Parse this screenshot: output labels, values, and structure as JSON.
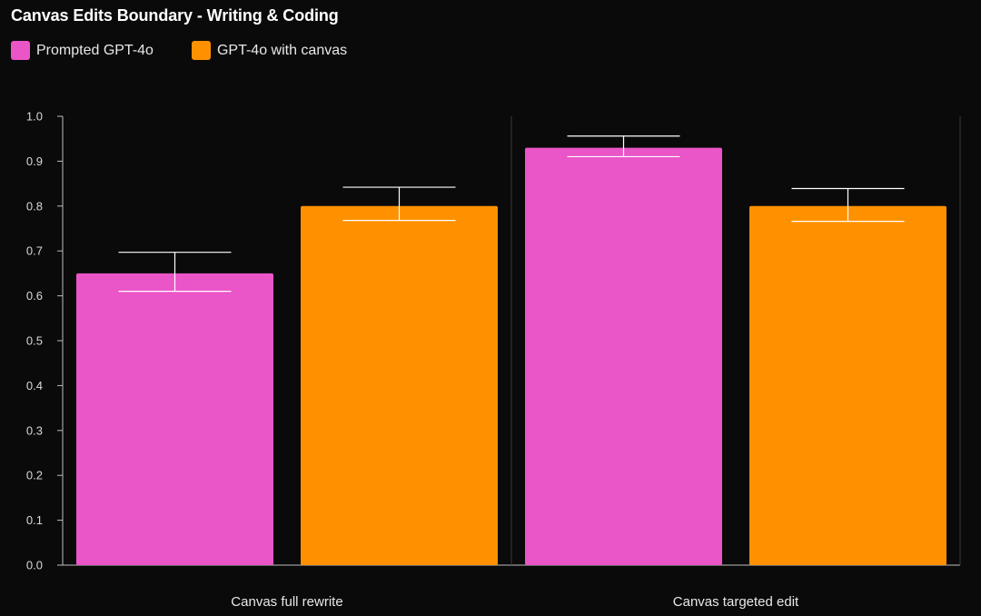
{
  "chart_data": {
    "type": "bar",
    "title": "Canvas Edits Boundary - Writing & Coding",
    "categories": [
      "Canvas full rewrite",
      "Canvas targeted edit"
    ],
    "series": [
      {
        "name": "Prompted GPT-4o",
        "color": "#ea55c8",
        "values": [
          0.65,
          0.93
        ],
        "error_low": [
          0.61,
          0.91
        ],
        "error_high": [
          0.697,
          0.956
        ]
      },
      {
        "name": "GPT-4o with canvas",
        "color": "#ff9100",
        "values": [
          0.8,
          0.8
        ],
        "error_low": [
          0.768,
          0.766
        ],
        "error_high": [
          0.842,
          0.839
        ]
      }
    ],
    "ylim": [
      0,
      1.0
    ],
    "yticks": [
      "0.0",
      "0.1",
      "0.2",
      "0.3",
      "0.4",
      "0.5",
      "0.6",
      "0.7",
      "0.8",
      "0.9",
      "1.0"
    ],
    "grid": false,
    "legend_position": "top-left",
    "background": "#0a0a0a"
  }
}
